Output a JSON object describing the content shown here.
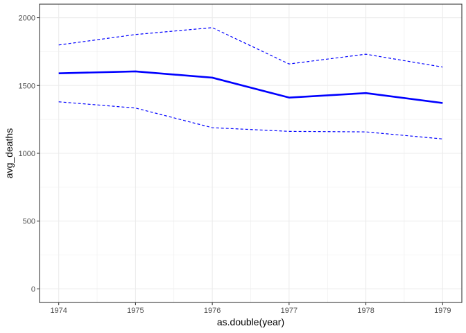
{
  "chart_data": {
    "type": "line",
    "title": "",
    "xlabel": "as.double(year)",
    "ylabel": "avg_deaths",
    "x": [
      1974,
      1975,
      1976,
      1977,
      1978,
      1979
    ],
    "xlim": [
      1973.75,
      1979.25
    ],
    "ylim": [
      -100,
      2100
    ],
    "x_ticks": [
      1974,
      1975,
      1976,
      1977,
      1978,
      1979
    ],
    "y_ticks": [
      0,
      500,
      1000,
      1500,
      2000
    ],
    "grid": true,
    "legend": "none",
    "series": [
      {
        "role": "mean",
        "style": "solid",
        "color": "#0000ff",
        "values": [
          1590,
          1604,
          1558,
          1411,
          1444,
          1371
        ]
      },
      {
        "role": "upper",
        "style": "dashed",
        "color": "#0000ff",
        "values": [
          1799,
          1876,
          1927,
          1659,
          1731,
          1636
        ]
      },
      {
        "role": "lower",
        "style": "dashed",
        "color": "#0000ff",
        "values": [
          1380,
          1334,
          1189,
          1162,
          1158,
          1106
        ]
      }
    ]
  }
}
